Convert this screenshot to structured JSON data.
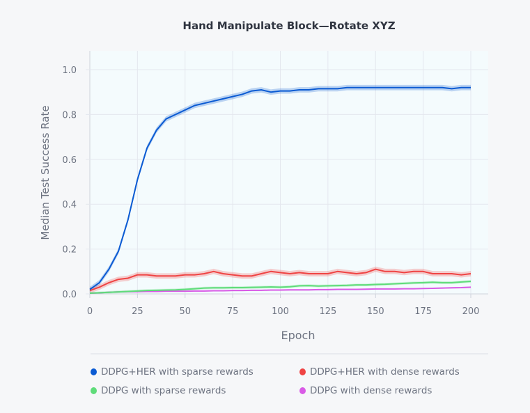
{
  "chart_data": {
    "type": "line",
    "title": "Hand Manipulate Block—Rotate XYZ",
    "xlabel": "Epoch",
    "ylabel": "Median Test Success Rate",
    "xlim": [
      0,
      210
    ],
    "ylim": [
      0,
      1.08
    ],
    "xticks": [
      0,
      25,
      50,
      75,
      100,
      125,
      150,
      175,
      200
    ],
    "yticks": [
      0.0,
      0.2,
      0.4,
      0.6,
      0.8,
      1.0
    ],
    "xtick_labels": [
      "0",
      "25",
      "50",
      "75",
      "100",
      "125",
      "150",
      "175",
      "200"
    ],
    "ytick_labels": [
      "0.0",
      "0.2",
      "0.4",
      "0.6",
      "0.8",
      "1.0"
    ],
    "grid": true,
    "legend_placement": "bottom",
    "x": [
      0,
      5,
      10,
      15,
      20,
      25,
      30,
      35,
      40,
      45,
      50,
      55,
      60,
      65,
      70,
      75,
      80,
      85,
      90,
      95,
      100,
      105,
      110,
      115,
      120,
      125,
      130,
      135,
      140,
      145,
      150,
      155,
      160,
      165,
      170,
      175,
      180,
      185,
      190,
      195,
      200
    ],
    "series": [
      {
        "name": "DDPG+HER with sparse rewards",
        "color": "#0b5bd3",
        "band": 0.012,
        "values": [
          0.02,
          0.05,
          0.11,
          0.19,
          0.33,
          0.51,
          0.65,
          0.73,
          0.78,
          0.8,
          0.82,
          0.84,
          0.85,
          0.86,
          0.87,
          0.88,
          0.89,
          0.905,
          0.91,
          0.9,
          0.905,
          0.905,
          0.91,
          0.91,
          0.915,
          0.915,
          0.915,
          0.92,
          0.92,
          0.92,
          0.92,
          0.92,
          0.92,
          0.92,
          0.92,
          0.92,
          0.92,
          0.92,
          0.915,
          0.92,
          0.92
        ]
      },
      {
        "name": "DDPG+HER with dense rewards",
        "color": "#ef4444",
        "band": 0.012,
        "values": [
          0.015,
          0.03,
          0.05,
          0.065,
          0.07,
          0.085,
          0.085,
          0.08,
          0.08,
          0.08,
          0.085,
          0.085,
          0.09,
          0.1,
          0.09,
          0.085,
          0.08,
          0.08,
          0.09,
          0.1,
          0.095,
          0.09,
          0.095,
          0.09,
          0.09,
          0.09,
          0.1,
          0.095,
          0.09,
          0.095,
          0.11,
          0.1,
          0.1,
          0.095,
          0.1,
          0.1,
          0.09,
          0.09,
          0.09,
          0.085,
          0.09
        ]
      },
      {
        "name": "DDPG with sparse rewards",
        "color": "#5fdc7a",
        "band": 0.006,
        "values": [
          0.003,
          0.005,
          0.007,
          0.009,
          0.011,
          0.013,
          0.015,
          0.016,
          0.017,
          0.018,
          0.02,
          0.023,
          0.026,
          0.027,
          0.027,
          0.028,
          0.028,
          0.029,
          0.03,
          0.031,
          0.03,
          0.032,
          0.036,
          0.037,
          0.035,
          0.036,
          0.037,
          0.038,
          0.04,
          0.04,
          0.042,
          0.043,
          0.045,
          0.047,
          0.049,
          0.05,
          0.052,
          0.05,
          0.05,
          0.053,
          0.056
        ]
      },
      {
        "name": "DDPG with dense rewards",
        "color": "#d95be6",
        "band": 0.003,
        "values": [
          0.003,
          0.005,
          0.007,
          0.009,
          0.01,
          0.01,
          0.011,
          0.011,
          0.012,
          0.012,
          0.012,
          0.013,
          0.013,
          0.014,
          0.014,
          0.015,
          0.015,
          0.016,
          0.016,
          0.017,
          0.017,
          0.018,
          0.018,
          0.018,
          0.019,
          0.019,
          0.02,
          0.02,
          0.02,
          0.021,
          0.022,
          0.022,
          0.022,
          0.023,
          0.023,
          0.024,
          0.025,
          0.026,
          0.027,
          0.028,
          0.03
        ]
      }
    ]
  }
}
